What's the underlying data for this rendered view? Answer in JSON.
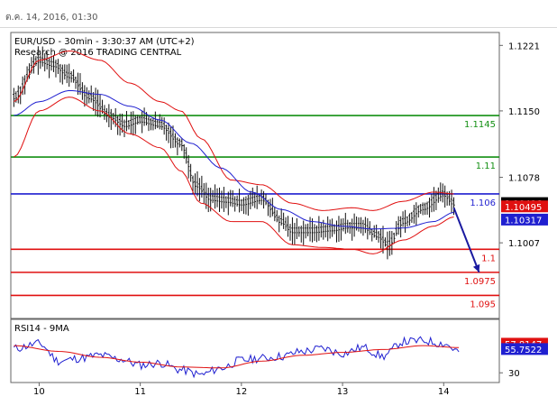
{
  "header": {
    "datetime": "ต.ค. 14, 2016, 01:30"
  },
  "chart_data": {
    "type": "candlestick",
    "title": "EUR/USD - 30min - 3:30:37 AM (UTC+2)",
    "subtitle": "Research @ 2016 TRADING CENTRAL",
    "price_axis": {
      "ylim": [
        1.0925,
        1.1235
      ],
      "ticks": [
        "1.1221",
        "1.1150",
        "1.1078",
        "1.1007"
      ]
    },
    "x_ticks": [
      {
        "label": "10",
        "x": 0
      },
      {
        "label": "11",
        "x": 1
      },
      {
        "label": "12",
        "x": 2
      },
      {
        "label": "13",
        "x": 3
      },
      {
        "label": "14",
        "x": 4
      }
    ],
    "xlim": [
      -0.28,
      4.55
    ],
    "levels": [
      {
        "value": 1.1145,
        "label": "1.1145",
        "color": "#138f13"
      },
      {
        "value": 1.11,
        "label": "1.11",
        "color": "#138f13"
      },
      {
        "value": 1.106,
        "label": "1.106",
        "color": "#1f1fd0"
      },
      {
        "value": 1.1,
        "label": "1.1",
        "color": "#e01010"
      },
      {
        "value": 1.0975,
        "label": "1.0975",
        "color": "#e01010"
      },
      {
        "value": 1.095,
        "label": "1.095",
        "color": "#e01010"
      }
    ],
    "price_series": {
      "x": [
        -0.25,
        0.0,
        0.15,
        0.3,
        0.5,
        0.7,
        0.85,
        1.0,
        1.2,
        1.4,
        1.55,
        1.7,
        1.85,
        2.0,
        2.2,
        2.4,
        2.5,
        2.7,
        2.9,
        3.05,
        3.2,
        3.35,
        3.45,
        3.6,
        3.8,
        4.0,
        4.1
      ],
      "close": [
        1.1165,
        1.1205,
        1.12,
        1.1188,
        1.1165,
        1.1145,
        1.1135,
        1.114,
        1.1135,
        1.1115,
        1.107,
        1.1055,
        1.1053,
        1.105,
        1.1055,
        1.103,
        1.102,
        1.102,
        1.1022,
        1.1025,
        1.1025,
        1.1015,
        1.1005,
        1.103,
        1.1045,
        1.106,
        1.105
      ]
    },
    "moving_average": {
      "x": [
        -0.25,
        0.0,
        0.3,
        0.6,
        0.9,
        1.2,
        1.5,
        1.8,
        2.1,
        2.4,
        2.7,
        3.0,
        3.3,
        3.6,
        3.9,
        4.1
      ],
      "value": [
        1.1145,
        1.116,
        1.1172,
        1.1168,
        1.1155,
        1.114,
        1.1115,
        1.1088,
        1.1062,
        1.1043,
        1.103,
        1.1025,
        1.1022,
        1.1023,
        1.103,
        1.104
      ]
    },
    "bollinger_upper": {
      "x": [
        -0.25,
        0.0,
        0.3,
        0.6,
        0.9,
        1.2,
        1.4,
        1.6,
        1.9,
        2.2,
        2.5,
        2.8,
        3.1,
        3.3,
        3.6,
        3.9,
        4.1
      ],
      "value": [
        1.116,
        1.1205,
        1.1215,
        1.1205,
        1.118,
        1.116,
        1.115,
        1.112,
        1.1075,
        1.107,
        1.105,
        1.1042,
        1.1045,
        1.1042,
        1.1052,
        1.1062,
        1.106
      ]
    },
    "bollinger_lower": {
      "x": [
        -0.25,
        0.0,
        0.3,
        0.6,
        0.9,
        1.2,
        1.4,
        1.6,
        1.9,
        2.2,
        2.5,
        2.8,
        3.1,
        3.3,
        3.6,
        3.9,
        4.1
      ],
      "value": [
        1.11,
        1.115,
        1.1165,
        1.115,
        1.1125,
        1.111,
        1.1085,
        1.105,
        1.103,
        1.103,
        1.1005,
        1.1002,
        1.1,
        1.0995,
        1.101,
        1.1025,
        1.1035
      ]
    },
    "forecast_arrow": {
      "x": [
        4.1,
        4.35
      ],
      "y": [
        1.1045,
        1.0975
      ]
    },
    "price_labels": [
      {
        "label": "1.10496",
        "value": 1.10496,
        "bg": "#000000"
      },
      {
        "label": "1.10495",
        "value": 1.1046,
        "bg": "#e01010"
      },
      {
        "label": "1.10317",
        "value": 1.10317,
        "bg": "#1f1fd0"
      }
    ],
    "rsi": {
      "title": "RSI14 - 9MA",
      "ylim": [
        20,
        85
      ],
      "ticks": [
        "30"
      ],
      "labels": [
        {
          "label": "57.8147",
          "value": 59.5,
          "bg": "#e01010"
        },
        {
          "label": "55.7522",
          "value": 54.0,
          "bg": "#1f1fd0"
        }
      ],
      "x": [
        -0.25,
        0.0,
        0.2,
        0.4,
        0.6,
        0.8,
        1.0,
        1.2,
        1.4,
        1.6,
        1.8,
        2.0,
        2.2,
        2.4,
        2.6,
        2.8,
        3.0,
        3.2,
        3.4,
        3.6,
        3.8,
        4.0,
        4.15
      ],
      "value": [
        55,
        60,
        42,
        45,
        48,
        44,
        38,
        40,
        33,
        28,
        35,
        43,
        45,
        47,
        52,
        55,
        50,
        56,
        47,
        62,
        63,
        60,
        52
      ],
      "ma_x": [
        -0.25,
        0.2,
        0.6,
        1.0,
        1.4,
        1.8,
        2.2,
        2.6,
        3.0,
        3.4,
        3.8,
        4.15
      ],
      "ma": [
        58,
        52,
        46,
        41,
        36,
        35,
        42,
        48,
        51,
        54,
        58,
        56
      ]
    }
  }
}
